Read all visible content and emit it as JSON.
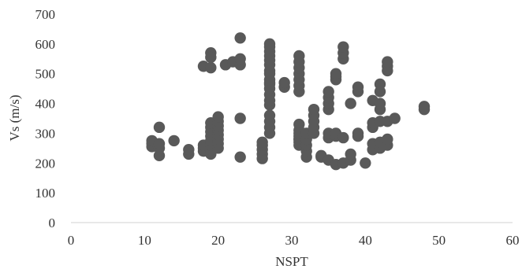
{
  "chart_data": {
    "type": "scatter",
    "title": "",
    "xlabel": "NSPT",
    "ylabel": "Vs (m/s)",
    "xlim": [
      0,
      60
    ],
    "ylim": [
      0,
      700
    ],
    "x_ticks": [
      "0",
      "10",
      "20",
      "30",
      "40",
      "50",
      "60"
    ],
    "y_ticks": [
      "0",
      "100",
      "200",
      "300",
      "400",
      "500",
      "600",
      "700"
    ],
    "grid": false,
    "legend": "none",
    "marker_color": "#595959",
    "series": [
      {
        "x": [
          11,
          11,
          11,
          12,
          12,
          12,
          12,
          14,
          16,
          16,
          18,
          18,
          18,
          18,
          19,
          19,
          19,
          19,
          19,
          19,
          19,
          19,
          19,
          19,
          19,
          20,
          20,
          20,
          20,
          20,
          20,
          20,
          20,
          21,
          22,
          23,
          23,
          23,
          23,
          23,
          26,
          26,
          26,
          26,
          26,
          27,
          27,
          27,
          27,
          27,
          27,
          27,
          27,
          27,
          27,
          27,
          27,
          27,
          27,
          27,
          27,
          27,
          27,
          27,
          29,
          29,
          31,
          31,
          31,
          31,
          31,
          31,
          31,
          31,
          31,
          31,
          31,
          31,
          31,
          31,
          31,
          32,
          32,
          32,
          32,
          32,
          33,
          33,
          33,
          33,
          33,
          34,
          34,
          35,
          35,
          35,
          35,
          35,
          35,
          35,
          36,
          36,
          36,
          36,
          36,
          36,
          37,
          37,
          37,
          37,
          37,
          38,
          38,
          38,
          39,
          39,
          39,
          39,
          40,
          41,
          41,
          41,
          41,
          41,
          42,
          42,
          42,
          42,
          42,
          42,
          42,
          43,
          43,
          43,
          43,
          43,
          43,
          44,
          48,
          48
        ],
        "y": [
          255,
          265,
          275,
          225,
          250,
          265,
          320,
          275,
          230,
          245,
          240,
          250,
          260,
          525,
          570,
          230,
          245,
          260,
          275,
          290,
          305,
          320,
          335,
          520,
          555,
          250,
          265,
          280,
          295,
          310,
          325,
          340,
          355,
          530,
          540,
          220,
          350,
          530,
          550,
          620,
          215,
          230,
          245,
          260,
          270,
          300,
          320,
          340,
          360,
          395,
          410,
          430,
          470,
          500,
          510,
          530,
          545,
          560,
          575,
          590,
          600,
          450,
          465,
          480,
          455,
          470,
          440,
          460,
          480,
          500,
          520,
          540,
          560,
          330,
          310,
          290,
          270,
          280,
          260,
          280,
          300,
          220,
          240,
          260,
          280,
          300,
          300,
          320,
          340,
          360,
          380,
          220,
          225,
          380,
          400,
          420,
          440,
          210,
          285,
          300,
          195,
          480,
          490,
          500,
          290,
          300,
          200,
          550,
          570,
          590,
          285,
          210,
          230,
          400,
          290,
          300,
          440,
          455,
          200,
          245,
          265,
          320,
          335,
          410,
          250,
          270,
          340,
          380,
          400,
          440,
          465,
          260,
          280,
          340,
          510,
          525,
          540,
          350,
          380,
          390
        ]
      }
    ]
  }
}
